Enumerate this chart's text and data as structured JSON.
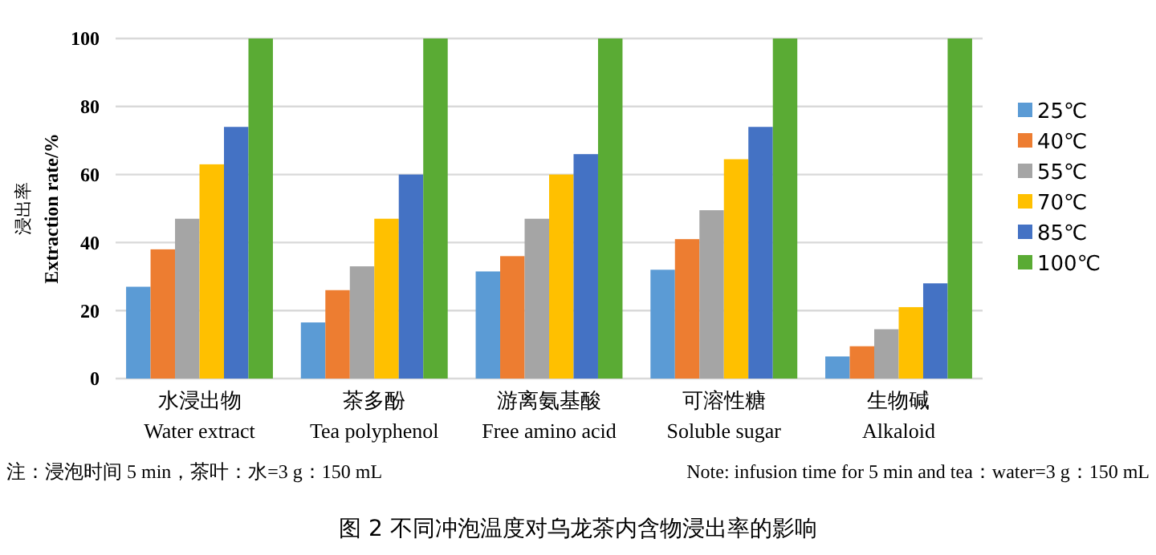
{
  "chart_data": {
    "type": "bar",
    "title": "图 2 不同冲泡温度对乌龙茶内含物浸出率的影响",
    "ylabel": "浸出率\nExtraction rate/%",
    "categories": [
      "水浸出物\nWater extract",
      "茶多酚\nTea polyphenol",
      "游离氨基酸\nFree amino acid",
      "可溶性糖\nSoluble sugar",
      "生物碱\nAlkaloid"
    ],
    "series": [
      {
        "name": "25℃",
        "color": "#5b9bd5",
        "values": [
          27,
          16.5,
          31.5,
          32,
          6.5
        ]
      },
      {
        "name": "40℃",
        "color": "#ed7d31",
        "values": [
          38,
          26,
          36,
          41,
          9.5
        ]
      },
      {
        "name": "55℃",
        "color": "#a5a5a5",
        "values": [
          47,
          33,
          47,
          49.5,
          14.5
        ]
      },
      {
        "name": "70℃",
        "color": "#ffc000",
        "values": [
          63,
          47,
          60,
          64.5,
          21
        ]
      },
      {
        "name": "85℃",
        "color": "#4472c4",
        "values": [
          74,
          60,
          66,
          74,
          28
        ]
      },
      {
        "name": "100℃",
        "color": "#5aab34",
        "values": [
          100,
          100,
          100,
          100,
          100
        ]
      }
    ],
    "ylim": [
      0,
      100
    ],
    "yticks": [
      0,
      20,
      40,
      60,
      80,
      100
    ],
    "grid": "y",
    "legend": "right",
    "annotations": [
      "注：浸泡时间 5 min，茶叶：水=3 g：150 mL",
      "Note: infusion time for 5 min and tea：water=3 g：150 mL"
    ]
  }
}
